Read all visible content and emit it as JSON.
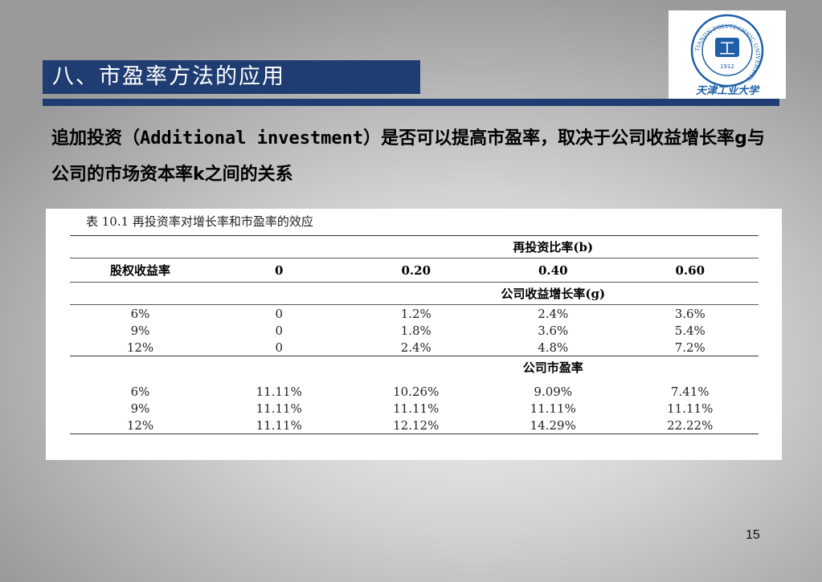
{
  "slide": {
    "title": "八、市盈率方法的应用",
    "intro_part1": "追加投资（",
    "intro_mono": "Additional investment",
    "intro_part2": "）是否可以提高市盈率，取决于公司收益增长率g与公司的市场资本率k之间的关系",
    "page_number": "15"
  },
  "logo": {
    "ring_text": "TIANJIN POLYTECHNIC UNIVERSITY",
    "center_text": "工",
    "year": "1912",
    "script_text": "天津工业大学",
    "color": "#1f5fa8"
  },
  "table": {
    "caption": "表 10.1   再投资率对增长率和市盈率的效应",
    "group_header_reinvest": "再投资比率(b)",
    "row_header": "股权收益率",
    "columns": [
      "0",
      "0.20",
      "0.40",
      "0.60"
    ],
    "group_header_growth": "公司收益增长率(g)",
    "growth_rows": [
      [
        "6%",
        "0",
        "1.2%",
        "2.4%",
        "3.6%"
      ],
      [
        "9%",
        "0",
        "1.8%",
        "3.6%",
        "5.4%"
      ],
      [
        "12%",
        "0",
        "2.4%",
        "4.8%",
        "7.2%"
      ]
    ],
    "group_header_pe": "公司市盈率",
    "pe_rows": [
      [
        "6%",
        "11.11%",
        "10.26%",
        "9.09%",
        "7.41%"
      ],
      [
        "9%",
        "11.11%",
        "11.11%",
        "11.11%",
        "11.11%"
      ],
      [
        "12%",
        "11.11%",
        "12.12%",
        "14.29%",
        "22.22%"
      ]
    ]
  },
  "colors": {
    "title_bar": "#1f3d72",
    "background": "#c8c8c8"
  }
}
